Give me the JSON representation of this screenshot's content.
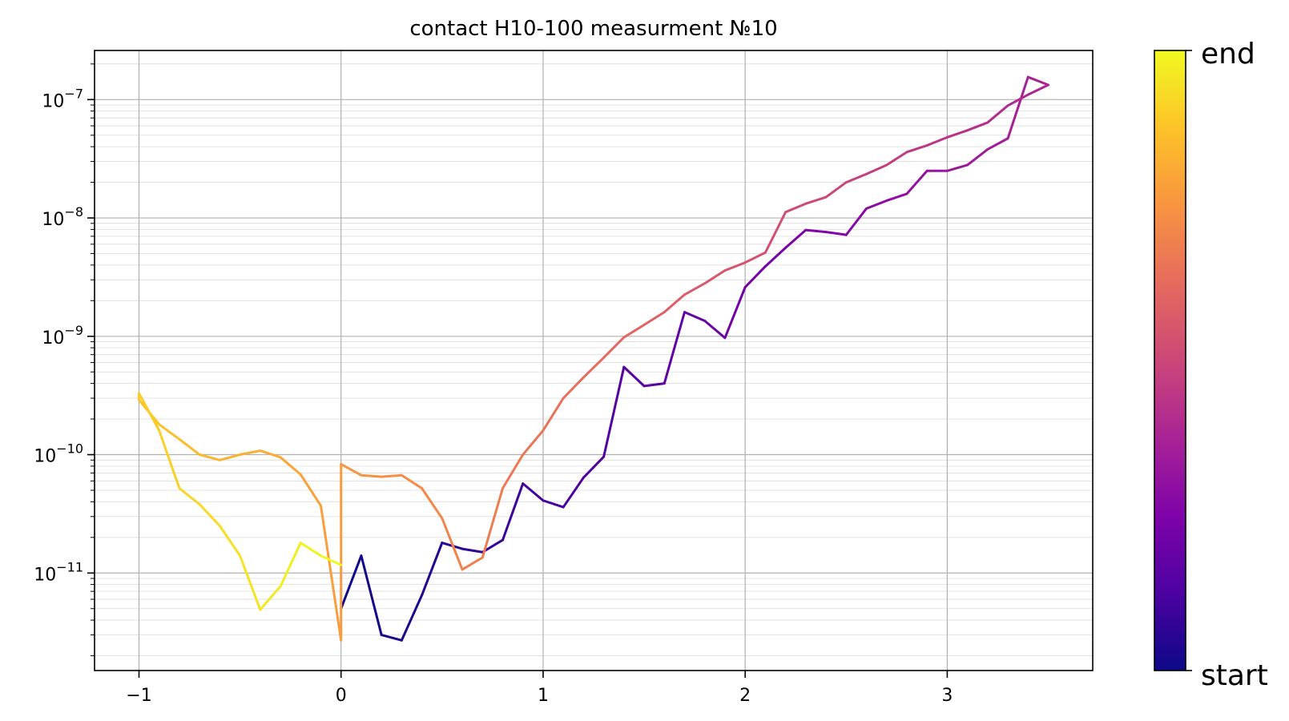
{
  "chart_data": {
    "type": "line",
    "title": "contact H10-100 measurment №10",
    "xlabel": "",
    "ylabel": "",
    "yscale": "log",
    "xlim": [
      -1.22,
      3.72
    ],
    "ylim": [
      1.5e-12,
      2.6e-07
    ],
    "xticks": [
      {
        "value": -1,
        "label": "−1"
      },
      {
        "value": 0,
        "label": "0"
      },
      {
        "value": 1,
        "label": "1"
      },
      {
        "value": 2,
        "label": "2"
      },
      {
        "value": 3,
        "label": "3"
      }
    ],
    "yticks": [
      {
        "value": 1e-11,
        "mantissa": "10",
        "exponent": "−11"
      },
      {
        "value": 1e-10,
        "mantissa": "10",
        "exponent": "−10"
      },
      {
        "value": 1e-09,
        "mantissa": "10",
        "exponent": "−9"
      },
      {
        "value": 1e-08,
        "mantissa": "10",
        "exponent": "−8"
      },
      {
        "value": 1e-07,
        "mantissa": "10",
        "exponent": "−7"
      }
    ],
    "grid": true,
    "colormap": "plasma",
    "colorbar": {
      "min_label": "start",
      "max_label": "end"
    },
    "x": [
      0,
      0.1,
      0.2,
      0.3,
      0.4,
      0.5,
      0.6,
      0.7,
      0.8,
      0.9,
      1.0,
      1.1,
      1.2,
      1.3,
      1.4,
      1.5,
      1.6,
      1.7,
      1.8,
      1.9,
      2.0,
      2.1,
      2.2,
      2.3,
      2.4,
      2.5,
      2.6,
      2.7,
      2.8,
      2.9,
      3.0,
      3.1,
      3.2,
      3.3,
      3.4,
      3.5,
      3.4,
      3.3,
      3.2,
      3.1,
      3.0,
      2.9,
      2.8,
      2.7,
      2.6,
      2.5,
      2.4,
      2.3,
      2.2,
      2.1,
      2.0,
      1.9,
      1.8,
      1.7,
      1.6,
      1.5,
      1.4,
      1.3,
      1.2,
      1.1,
      1.0,
      0.9,
      0.8,
      0.7,
      0.6,
      0.5,
      0.4,
      0.3,
      0.2,
      0.1,
      0,
      0,
      -0.1,
      -0.2,
      -0.3,
      -0.4,
      -0.5,
      -0.6,
      -0.7,
      -0.8,
      -0.9,
      -1.0,
      -1.0,
      -0.9,
      -0.8,
      -0.7,
      -0.6,
      -0.5,
      -0.4,
      -0.3,
      -0.2,
      -0.1,
      0
    ],
    "y": [
      5e-12,
      1.4e-11,
      3e-12,
      2.7e-12,
      6.5e-12,
      1.8e-11,
      1.6e-11,
      1.5e-11,
      1.9e-11,
      5.7e-11,
      4.1e-11,
      3.6e-11,
      6.4e-11,
      9.6e-11,
      5.5e-10,
      3.8e-10,
      4e-10,
      1.6e-09,
      1.35e-09,
      9.7e-10,
      2.6e-09,
      3.9e-09,
      5.6e-09,
      7.9e-09,
      7.6e-09,
      7.2e-09,
      1.2e-08,
      1.4e-08,
      1.6e-08,
      2.5e-08,
      2.5e-08,
      2.8e-08,
      3.8e-08,
      4.7e-08,
      1.55e-07,
      1.33e-07,
      1.1e-07,
      8.9e-08,
      6.4e-08,
      5.5e-08,
      4.8e-08,
      4.1e-08,
      3.6e-08,
      2.8e-08,
      2.35e-08,
      2e-08,
      1.5e-08,
      1.32e-08,
      1.12e-08,
      5.1e-09,
      4.2e-09,
      3.6e-09,
      2.8e-09,
      2.25e-09,
      1.6e-09,
      1.25e-09,
      9.8e-10,
      6.6e-10,
      4.5e-10,
      3e-10,
      1.6e-10,
      1e-10,
      5.2e-11,
      1.35e-11,
      1.07e-11,
      2.9e-11,
      5.2e-11,
      6.7e-11,
      6.5e-11,
      6.7e-11,
      8.3e-11,
      2.7e-12,
      3.7e-11,
      6.8e-11,
      9.5e-11,
      1.08e-10,
      1e-10,
      9e-11,
      1e-10,
      1.35e-10,
      1.8e-10,
      2.9e-10,
      3.3e-10,
      1.6e-10,
      5.2e-11,
      3.8e-11,
      2.5e-11,
      1.4e-11,
      4.9e-12,
      7.7e-12,
      1.8e-11,
      1.4e-11,
      1.17e-11
    ]
  }
}
